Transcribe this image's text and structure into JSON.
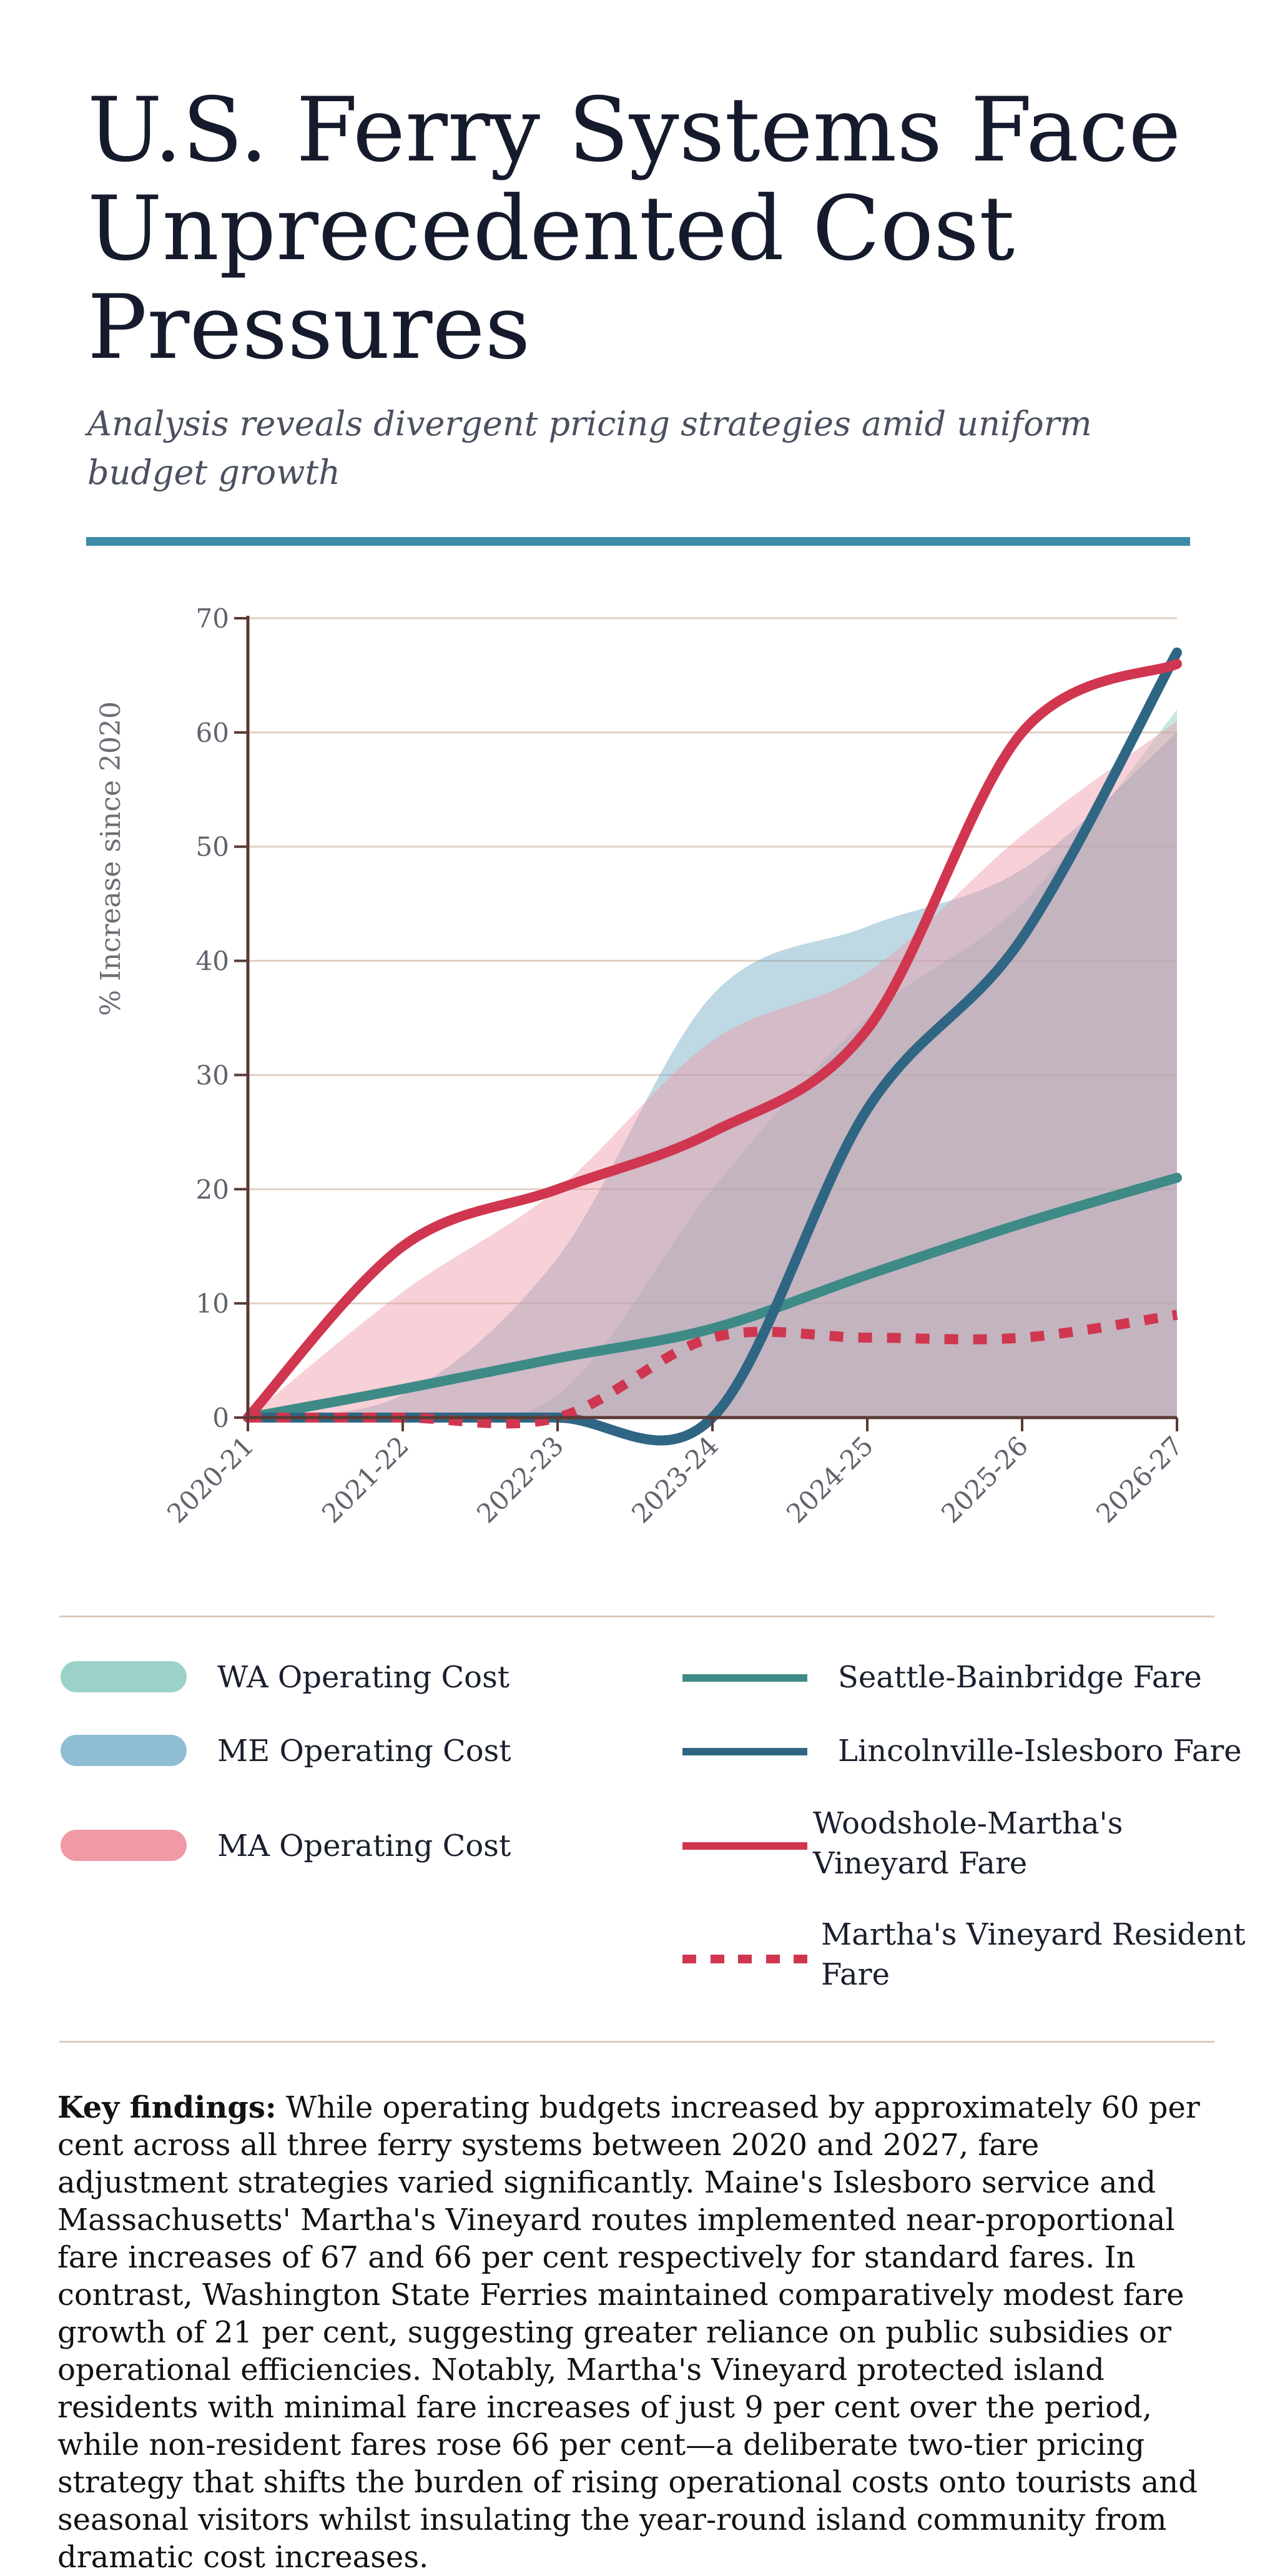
{
  "header": {
    "title": "U.S. Ferry Systems Face Unprecedented Cost Pressures",
    "subtitle": "Analysis reveals divergent pricing strategies amid uniform budget growth"
  },
  "chart_data": {
    "type": "line",
    "title": "",
    "xlabel": "",
    "ylabel": "% Increase since 2020",
    "categories": [
      "2020-21",
      "2021-22",
      "2022-23",
      "2023-24",
      "2024-25",
      "2025-26",
      "2026-27"
    ],
    "ylim": [
      0,
      70
    ],
    "yticks": [
      0,
      10,
      20,
      30,
      40,
      50,
      60,
      70
    ],
    "grid": "horizontal",
    "series": [
      {
        "name": "WA Operating Cost",
        "kind": "area",
        "color": "#86cbbe",
        "values": [
          0,
          0,
          2,
          20,
          35,
          45,
          62
        ]
      },
      {
        "name": "ME Operating Cost",
        "kind": "area",
        "color": "#6ea8c3",
        "values": [
          0,
          2,
          14,
          37,
          43,
          48,
          60
        ]
      },
      {
        "name": "MA Operating Cost",
        "kind": "area",
        "color": "#ee9aa6",
        "values": [
          0,
          11,
          20,
          33,
          39,
          51,
          61
        ]
      },
      {
        "name": "Seattle-Bainbridge Fare",
        "kind": "line",
        "color": "#3e8a86",
        "values": [
          0,
          2.5,
          5.2,
          7.8,
          12.5,
          17,
          21
        ]
      },
      {
        "name": "Lincolnville-Islesboro Fare",
        "kind": "line",
        "color": "#2f6684",
        "values": [
          0,
          0,
          0,
          0,
          27,
          42,
          67
        ]
      },
      {
        "name": "Woodshole-Martha's Vineyard Fare",
        "kind": "line",
        "color": "#d0364f",
        "values": [
          0,
          15,
          20,
          25,
          34,
          60,
          66
        ]
      },
      {
        "name": "Martha's Vineyard Resident Fare",
        "kind": "dotted",
        "color": "#d0364f",
        "values": [
          0,
          0,
          0,
          7,
          7,
          7,
          9
        ]
      }
    ]
  },
  "legend": {
    "wa_cost": "WA Operating Cost",
    "me_cost": "ME Operating Cost",
    "ma_cost": "MA Operating Cost",
    "seattle_fare": "Seattle-Bainbridge Fare",
    "lincolnville_fare": "Lincolnville-Islesboro Fare",
    "woodshole_fare_1": "Woodshole-Martha's",
    "woodshole_fare_2": "Vineyard Fare",
    "resident_fare_1": "Martha's Vineyard Resident",
    "resident_fare_2": "Fare"
  },
  "findings": {
    "label": "Key findings:",
    "text": "While operating budgets increased by approximately 60 per cent across all three ferry systems between 2020 and 2027, fare adjustment strategies varied significantly. Maine's Islesboro service and Massachusetts' Martha's Vineyard routes implemented near-proportional fare increases of 67 and 66 per cent respectively for standard fares. In contrast, Washington State Ferries maintained comparatively modest fare growth of 21 per cent, suggesting greater reliance on public subsidies or operational efficiencies. Notably, Martha's Vineyard protected island residents with minimal fare increases of just 9 per cent over the period, while non-resident fares rose 66 per cent—a deliberate two-tier pricing strategy that shifts the burden of rising operational costs onto tourists and seasonal visitors whilst insulating the year-round island community from dramatic cost increases."
  },
  "colors": {
    "accent": "#3f8aa6",
    "grid": "#ddc9bc",
    "axis": "#5a3a34"
  }
}
